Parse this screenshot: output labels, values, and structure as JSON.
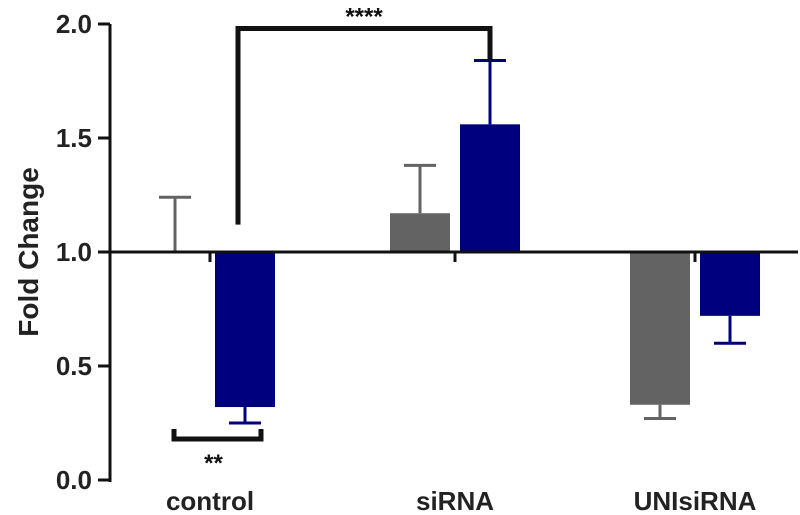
{
  "chart_data": {
    "type": "bar",
    "ylabel": "Fold Change",
    "ylim": [
      0,
      2
    ],
    "yticks": [
      "0.0",
      "0.5",
      "1.0",
      "1.5",
      "2.0"
    ],
    "baseline": 1.0,
    "categories": [
      "control",
      "siRNA",
      "UNIsiRNA"
    ],
    "series": [
      {
        "color": "#636363",
        "values": [
          1.0,
          1.17,
          0.33
        ],
        "errors": [
          0.24,
          0.21,
          0.06
        ]
      },
      {
        "color": "#00007f",
        "values": [
          0.32,
          1.56,
          0.72
        ],
        "errors": [
          0.07,
          0.28,
          0.12
        ]
      }
    ],
    "significance": [
      {
        "label": "****",
        "from_value": 1.12,
        "to_value": 1.84,
        "top_value": 1.98
      },
      {
        "label": "**",
        "from_value": 0.18,
        "to_value": 0.18,
        "bottom_value": 0.15
      }
    ]
  }
}
